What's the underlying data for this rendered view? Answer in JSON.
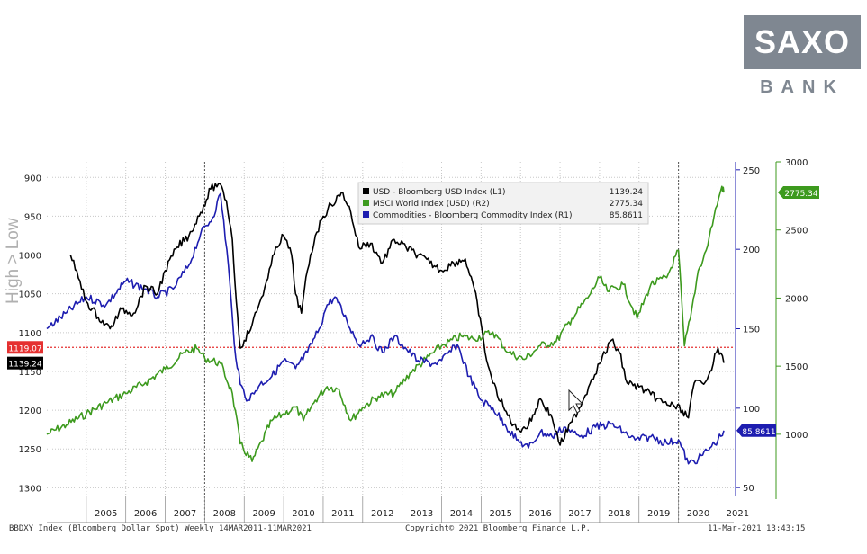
{
  "brand": {
    "logo_text": "SAXO",
    "logo_subtext": "BANK"
  },
  "watermark": "High > Low",
  "footer": {
    "left": "BBDXY Index (Bloomberg Dollar Spot)  Weekly 14MAR2011-11MAR2021",
    "center": "Copyright© 2021 Bloomberg Finance L.P.",
    "right": "11-Mar-2021 13:43:15"
  },
  "colors": {
    "usd": "#000000",
    "msci": "#3d9a1e",
    "commod": "#1d1db0",
    "ref_line": "#e53030",
    "usd_tag": "#000000",
    "ref_tag": "#e53030"
  },
  "chart_data": {
    "type": "line",
    "x_ticks": [
      "2005",
      "2006",
      "2007",
      "2008",
      "2009",
      "2010",
      "2011",
      "2012",
      "2013",
      "2014",
      "2015",
      "2016",
      "2017",
      "2018",
      "2019",
      "2020",
      "2021"
    ],
    "axes": {
      "L1": {
        "inverted": true,
        "range": [
          880,
          1310
        ],
        "ticks": [
          900,
          950,
          1000,
          1050,
          1100,
          1150,
          1200,
          1250,
          1300
        ]
      },
      "R1": {
        "range": [
          45,
          255
        ],
        "ticks": [
          50,
          100,
          150,
          200,
          250
        ]
      },
      "R2": {
        "range": [
          550,
          3000
        ],
        "ticks": [
          1000,
          1500,
          2000,
          2500,
          3000
        ]
      }
    },
    "legend": {
      "position": "top-center",
      "entries": [
        {
          "label": "USD - Bloomberg USD Index (L1)",
          "value": "1139.24"
        },
        {
          "label": "MSCI World Index (USD) (R2)",
          "value": "2775.34"
        },
        {
          "label": "Commodities - Bloomberg Commodity Index (R1)",
          "value": "85.8611"
        }
      ]
    },
    "reference_line": {
      "axis": "L1",
      "value": 1119.07,
      "label": "1119.07"
    },
    "last_value_tags": {
      "usd": "1139.24",
      "msci": "2775.34",
      "commod": "85.8611"
    },
    "series": [
      {
        "name": "USD - Bloomberg USD Index (L1)",
        "axis": "L1",
        "points": [
          [
            2004.6,
            1000
          ],
          [
            2004.8,
            1030
          ],
          [
            2005.0,
            1060
          ],
          [
            2005.3,
            1080
          ],
          [
            2005.6,
            1095
          ],
          [
            2005.9,
            1070
          ],
          [
            2006.2,
            1075
          ],
          [
            2006.5,
            1040
          ],
          [
            2006.8,
            1050
          ],
          [
            2007.0,
            1020
          ],
          [
            2007.3,
            990
          ],
          [
            2007.6,
            975
          ],
          [
            2007.9,
            945
          ],
          [
            2008.15,
            915
          ],
          [
            2008.35,
            908
          ],
          [
            2008.55,
            930
          ],
          [
            2008.7,
            980
          ],
          [
            2008.8,
            1060
          ],
          [
            2008.9,
            1120
          ],
          [
            2009.0,
            1110
          ],
          [
            2009.2,
            1090
          ],
          [
            2009.4,
            1060
          ],
          [
            2009.6,
            1030
          ],
          [
            2009.8,
            990
          ],
          [
            2010.0,
            975
          ],
          [
            2010.2,
            1000
          ],
          [
            2010.3,
            1050
          ],
          [
            2010.45,
            1075
          ],
          [
            2010.6,
            1020
          ],
          [
            2010.8,
            975
          ],
          [
            2011.0,
            950
          ],
          [
            2011.2,
            935
          ],
          [
            2011.5,
            920
          ],
          [
            2011.7,
            945
          ],
          [
            2011.9,
            990
          ],
          [
            2012.2,
            985
          ],
          [
            2012.5,
            1010
          ],
          [
            2012.8,
            980
          ],
          [
            2013.1,
            990
          ],
          [
            2013.4,
            1000
          ],
          [
            2013.7,
            1010
          ],
          [
            2014.0,
            1020
          ],
          [
            2014.3,
            1010
          ],
          [
            2014.6,
            1005
          ],
          [
            2014.9,
            1060
          ],
          [
            2015.1,
            1125
          ],
          [
            2015.3,
            1165
          ],
          [
            2015.6,
            1200
          ],
          [
            2015.9,
            1225
          ],
          [
            2016.2,
            1220
          ],
          [
            2016.5,
            1185
          ],
          [
            2016.8,
            1210
          ],
          [
            2017.0,
            1245
          ],
          [
            2017.3,
            1215
          ],
          [
            2017.6,
            1185
          ],
          [
            2017.8,
            1160
          ],
          [
            2018.0,
            1140
          ],
          [
            2018.3,
            1110
          ],
          [
            2018.5,
            1125
          ],
          [
            2018.7,
            1165
          ],
          [
            2019.0,
            1170
          ],
          [
            2019.3,
            1180
          ],
          [
            2019.6,
            1190
          ],
          [
            2019.9,
            1195
          ],
          [
            2020.1,
            1200
          ],
          [
            2020.25,
            1210
          ],
          [
            2020.4,
            1165
          ],
          [
            2020.6,
            1165
          ],
          [
            2020.8,
            1150
          ],
          [
            2021.0,
            1120
          ],
          [
            2021.15,
            1139
          ]
        ]
      },
      {
        "name": "MSCI World Index (USD) (R2)",
        "axis": "R2",
        "points": [
          [
            2004.0,
            1000
          ],
          [
            2004.5,
            1070
          ],
          [
            2005.0,
            1150
          ],
          [
            2005.5,
            1230
          ],
          [
            2006.0,
            1300
          ],
          [
            2006.5,
            1380
          ],
          [
            2007.0,
            1480
          ],
          [
            2007.5,
            1600
          ],
          [
            2007.8,
            1630
          ],
          [
            2008.0,
            1560
          ],
          [
            2008.4,
            1520
          ],
          [
            2008.7,
            1300
          ],
          [
            2008.9,
            930
          ],
          [
            2009.2,
            800
          ],
          [
            2009.45,
            950
          ],
          [
            2009.7,
            1100
          ],
          [
            2010.0,
            1150
          ],
          [
            2010.3,
            1200
          ],
          [
            2010.5,
            1100
          ],
          [
            2010.8,
            1250
          ],
          [
            2011.1,
            1350
          ],
          [
            2011.4,
            1330
          ],
          [
            2011.7,
            1100
          ],
          [
            2012.0,
            1200
          ],
          [
            2012.4,
            1280
          ],
          [
            2012.8,
            1300
          ],
          [
            2013.2,
            1450
          ],
          [
            2013.6,
            1550
          ],
          [
            2014.0,
            1650
          ],
          [
            2014.5,
            1720
          ],
          [
            2014.8,
            1700
          ],
          [
            2015.3,
            1750
          ],
          [
            2015.7,
            1600
          ],
          [
            2016.1,
            1550
          ],
          [
            2016.5,
            1650
          ],
          [
            2016.9,
            1680
          ],
          [
            2017.3,
            1850
          ],
          [
            2017.7,
            2000
          ],
          [
            2018.0,
            2150
          ],
          [
            2018.2,
            2050
          ],
          [
            2018.6,
            2100
          ],
          [
            2018.95,
            1850
          ],
          [
            2019.3,
            2100
          ],
          [
            2019.7,
            2150
          ],
          [
            2020.0,
            2350
          ],
          [
            2020.15,
            1650
          ],
          [
            2020.3,
            1850
          ],
          [
            2020.5,
            2200
          ],
          [
            2020.7,
            2350
          ],
          [
            2020.9,
            2600
          ],
          [
            2021.1,
            2820
          ],
          [
            2021.15,
            2775
          ]
        ]
      },
      {
        "name": "Commodities - Bloomberg Commodity Index (R1)",
        "axis": "R1",
        "points": [
          [
            2004.0,
            150
          ],
          [
            2004.5,
            160
          ],
          [
            2005.0,
            170
          ],
          [
            2005.5,
            165
          ],
          [
            2006.0,
            180
          ],
          [
            2006.5,
            175
          ],
          [
            2006.8,
            170
          ],
          [
            2007.2,
            175
          ],
          [
            2007.6,
            190
          ],
          [
            2007.9,
            210
          ],
          [
            2008.2,
            220
          ],
          [
            2008.4,
            235
          ],
          [
            2008.6,
            190
          ],
          [
            2008.75,
            140
          ],
          [
            2008.9,
            115
          ],
          [
            2009.1,
            105
          ],
          [
            2009.4,
            115
          ],
          [
            2009.7,
            120
          ],
          [
            2010.0,
            130
          ],
          [
            2010.3,
            125
          ],
          [
            2010.6,
            135
          ],
          [
            2010.9,
            150
          ],
          [
            2011.1,
            165
          ],
          [
            2011.3,
            170
          ],
          [
            2011.6,
            155
          ],
          [
            2011.9,
            140
          ],
          [
            2012.2,
            145
          ],
          [
            2012.5,
            135
          ],
          [
            2012.8,
            145
          ],
          [
            2013.0,
            140
          ],
          [
            2013.4,
            130
          ],
          [
            2013.8,
            128
          ],
          [
            2014.0,
            130
          ],
          [
            2014.4,
            140
          ],
          [
            2014.7,
            120
          ],
          [
            2015.0,
            105
          ],
          [
            2015.3,
            100
          ],
          [
            2015.6,
            90
          ],
          [
            2015.9,
            80
          ],
          [
            2016.2,
            75
          ],
          [
            2016.5,
            85
          ],
          [
            2016.8,
            82
          ],
          [
            2017.1,
            88
          ],
          [
            2017.5,
            82
          ],
          [
            2017.9,
            88
          ],
          [
            2018.3,
            90
          ],
          [
            2018.6,
            85
          ],
          [
            2018.9,
            80
          ],
          [
            2019.3,
            82
          ],
          [
            2019.7,
            78
          ],
          [
            2020.0,
            80
          ],
          [
            2020.25,
            65
          ],
          [
            2020.5,
            68
          ],
          [
            2020.8,
            75
          ],
          [
            2021.0,
            80
          ],
          [
            2021.15,
            85.86
          ]
        ]
      }
    ]
  }
}
